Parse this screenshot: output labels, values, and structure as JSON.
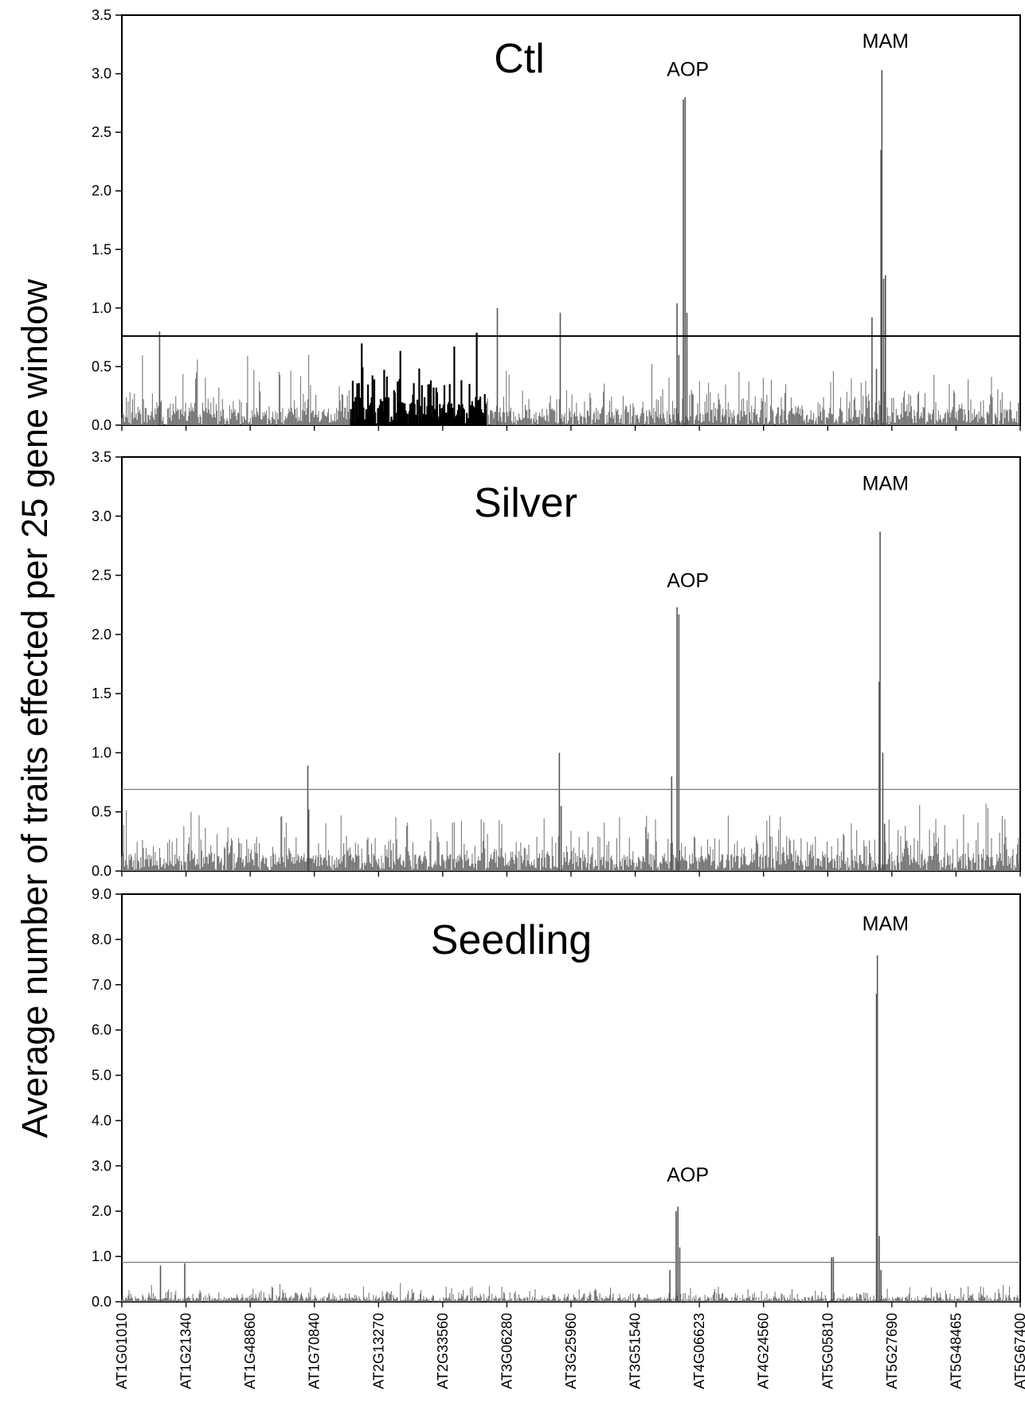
{
  "y_axis_label": "Average number of traits effected per 25 gene window",
  "x_tick_labels": [
    "AT1G01010",
    "AT1G21340",
    "AT1G48860",
    "AT1G70840",
    "AT2G13270",
    "AT2G33560",
    "AT3G06280",
    "AT3G25960",
    "AT3G51540",
    "AT4G06623",
    "AT4G24560",
    "AT5G05810",
    "AT5G27690",
    "AT5G48465",
    "AT5G67400"
  ],
  "chart_data": [
    {
      "type": "bar",
      "title": "Ctl",
      "ylim": [
        0,
        3.5
      ],
      "yticks": [
        "0.0",
        "0.5",
        "1.0",
        "1.5",
        "2.0",
        "2.5",
        "3.0",
        "3.5"
      ],
      "threshold": 0.76,
      "x_range": [
        0,
        1000
      ],
      "baseline_noise_max": 0.3,
      "highlight_range": [
        255,
        405
      ],
      "highlight_color": "#000000",
      "bar_color": "#7a7a7a",
      "peaks": [
        {
          "x": 42,
          "y": 0.8
        },
        {
          "x": 418,
          "y": 1.0
        },
        {
          "x": 488,
          "y": 0.96
        },
        {
          "x": 618,
          "y": 1.04
        },
        {
          "x": 620,
          "y": 0.6
        },
        {
          "x": 625,
          "y": 2.78
        },
        {
          "x": 627,
          "y": 2.8
        },
        {
          "x": 629,
          "y": 0.96
        },
        {
          "x": 835,
          "y": 0.92
        },
        {
          "x": 840,
          "y": 0.48
        },
        {
          "x": 845,
          "y": 2.35
        },
        {
          "x": 846,
          "y": 3.03
        },
        {
          "x": 848,
          "y": 1.25
        },
        {
          "x": 850,
          "y": 1.28
        }
      ],
      "annotations": [
        {
          "text": "AOP",
          "x": 630,
          "y": 2.98
        },
        {
          "text": "MAM",
          "x": 850,
          "y": 3.22
        }
      ]
    },
    {
      "type": "bar",
      "title": "Silver",
      "ylim": [
        0,
        3.5
      ],
      "yticks": [
        "0.0",
        "0.5",
        "1.0",
        "1.5",
        "2.0",
        "2.5",
        "3.0",
        "3.5"
      ],
      "threshold": 0.69,
      "x_range": [
        0,
        1000
      ],
      "baseline_noise_max": 0.3,
      "bar_color": "#7a7a7a",
      "peaks": [
        {
          "x": 207,
          "y": 0.89
        },
        {
          "x": 208,
          "y": 0.52
        },
        {
          "x": 487,
          "y": 1.0
        },
        {
          "x": 489,
          "y": 0.55
        },
        {
          "x": 612,
          "y": 0.8
        },
        {
          "x": 618,
          "y": 2.23
        },
        {
          "x": 620,
          "y": 2.17
        },
        {
          "x": 843,
          "y": 1.6
        },
        {
          "x": 844,
          "y": 2.87
        },
        {
          "x": 847,
          "y": 1.0
        },
        {
          "x": 849,
          "y": 0.4
        }
      ],
      "annotations": [
        {
          "text": "AOP",
          "x": 630,
          "y": 2.4
        },
        {
          "text": "MAM",
          "x": 850,
          "y": 3.22
        }
      ]
    },
    {
      "type": "bar",
      "title": "Seedling",
      "ylim": [
        0,
        9.0
      ],
      "yticks": [
        "0.0",
        "1.0",
        "2.0",
        "3.0",
        "4.0",
        "5.0",
        "6.0",
        "7.0",
        "8.0",
        "9.0"
      ],
      "threshold": 0.87,
      "x_range": [
        0,
        1000
      ],
      "baseline_noise_max": 0.35,
      "bar_color": "#7a7a7a",
      "peaks": [
        {
          "x": 43,
          "y": 0.8
        },
        {
          "x": 70,
          "y": 0.85
        },
        {
          "x": 610,
          "y": 0.7
        },
        {
          "x": 617,
          "y": 2.0
        },
        {
          "x": 619,
          "y": 2.1
        },
        {
          "x": 621,
          "y": 1.2
        },
        {
          "x": 790,
          "y": 0.98
        },
        {
          "x": 792,
          "y": 0.98
        },
        {
          "x": 840,
          "y": 6.8
        },
        {
          "x": 841,
          "y": 7.65
        },
        {
          "x": 843,
          "y": 1.45
        },
        {
          "x": 845,
          "y": 0.7
        }
      ],
      "annotations": [
        {
          "text": "AOP",
          "x": 630,
          "y": 2.65
        },
        {
          "text": "MAM",
          "x": 850,
          "y": 8.2
        }
      ]
    }
  ]
}
